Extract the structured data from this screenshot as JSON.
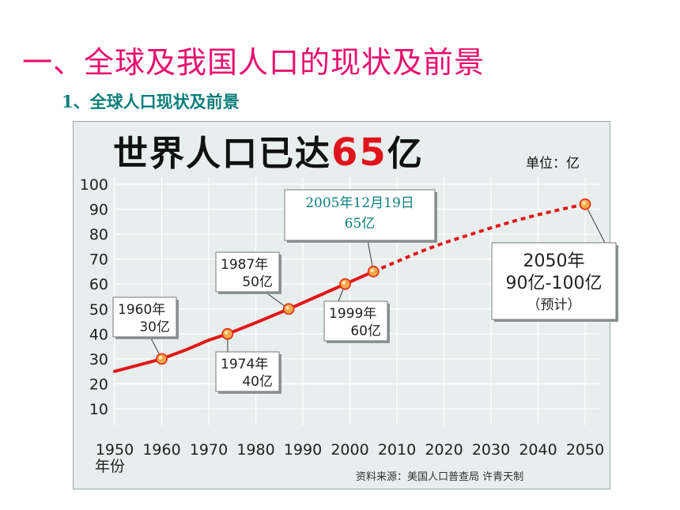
{
  "slide": {
    "title": "一、全球及我国人口的现状及前景",
    "subtitle": "1、全球人口现状及前景"
  },
  "chart_data": {
    "type": "line",
    "title_prefix": "世界人口已达",
    "title_number": "65",
    "title_suffix": "亿",
    "unit_label": "单位：亿",
    "xlabel": "年份",
    "source": "资料来源：美国人口普查局 许青天制",
    "xlim": [
      1950,
      2050
    ],
    "ylim": [
      0,
      100
    ],
    "x_ticks": [
      "1950",
      "1960",
      "1970",
      "1980",
      "1990",
      "2000",
      "2010",
      "2020",
      "2030",
      "2040",
      "2050"
    ],
    "y_ticks": [
      "100",
      "90",
      "80",
      "70",
      "60",
      "50",
      "40",
      "30",
      "20",
      "10"
    ],
    "series": [
      {
        "style": "solid",
        "color": "#e01818",
        "x": [
          1950,
          1955,
          1960,
          1965,
          1970,
          1974,
          1980,
          1987,
          1993,
          1999,
          2005
        ],
        "y": [
          25,
          27.5,
          30,
          33.5,
          37.5,
          40,
          44.5,
          50,
          55,
          60,
          65
        ]
      },
      {
        "style": "dashed",
        "color": "#e01818",
        "x": [
          2005,
          2010,
          2015,
          2020,
          2025,
          2030,
          2035,
          2040,
          2045,
          2050
        ],
        "y": [
          65,
          69,
          73,
          76.5,
          79.5,
          82.5,
          85.3,
          87.8,
          90,
          92
        ]
      }
    ],
    "points": [
      {
        "x": 1960,
        "y": 30
      },
      {
        "x": 1974,
        "y": 40
      },
      {
        "x": 1987,
        "y": 50
      },
      {
        "x": 1999,
        "y": 60
      },
      {
        "x": 2005,
        "y": 65
      },
      {
        "x": 2050,
        "y": 92
      }
    ],
    "annotations": [
      {
        "id": "a1960",
        "x": 1960,
        "y": 30,
        "line1": "1960年",
        "line2": "30亿"
      },
      {
        "id": "a1974",
        "x": 1974,
        "y": 40,
        "line1": "1974年",
        "line2": "40亿"
      },
      {
        "id": "a1987",
        "x": 1987,
        "y": 50,
        "line1": "1987年",
        "line2": "50亿"
      },
      {
        "id": "a1999",
        "x": 1999,
        "y": 60,
        "line1": "1999年",
        "line2": "60亿"
      },
      {
        "id": "a2005",
        "x": 2005,
        "y": 65,
        "line1": "2005年12月19日",
        "line2": "65亿"
      },
      {
        "id": "a2050",
        "x": 2050,
        "y": 92,
        "line1": "2050年",
        "line2": "90亿-100亿",
        "line3": "（预计）"
      }
    ]
  }
}
